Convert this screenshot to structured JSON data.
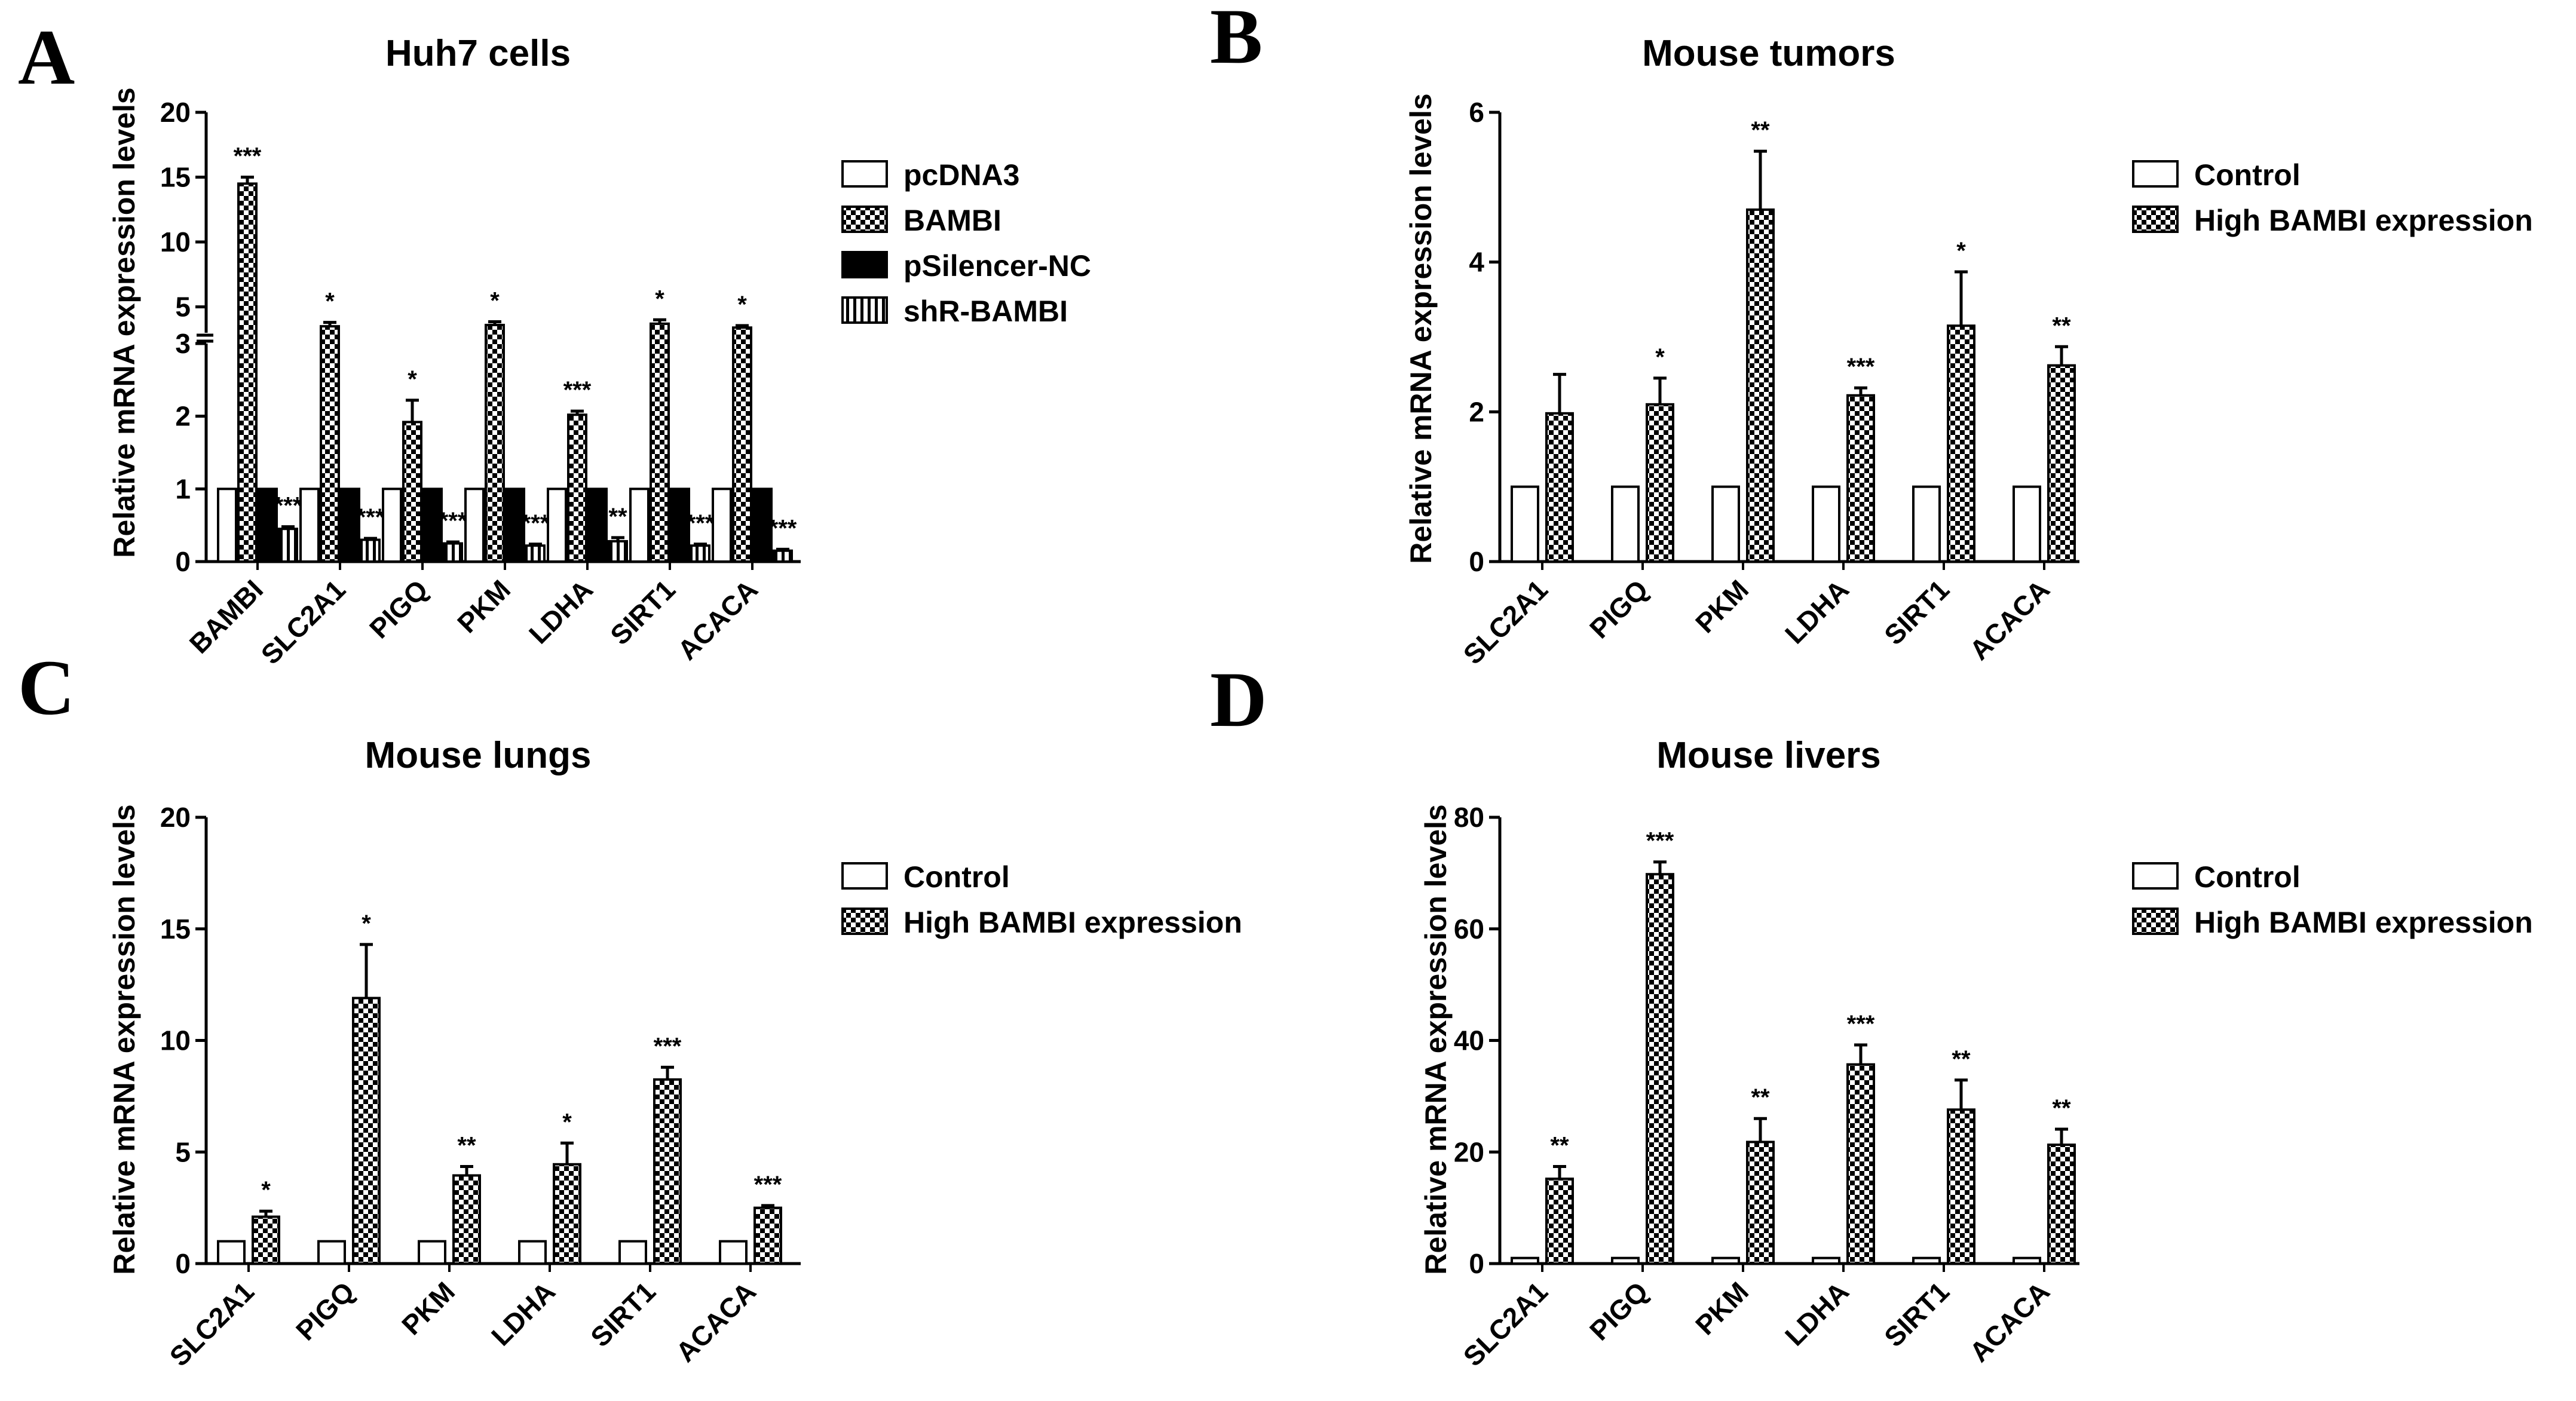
{
  "chart_data": [
    {
      "panel": "A",
      "type": "bar",
      "title": "Huh7 cells",
      "ylabel": "Relative mRNA expression levels",
      "xlabel": "",
      "broken_axis": true,
      "ylim_lower": [
        0,
        3
      ],
      "ylim_upper": [
        3,
        20
      ],
      "yticks_lower": [
        "0",
        "1",
        "2",
        "3"
      ],
      "yticks_upper": [
        "5",
        "10",
        "15",
        "20"
      ],
      "categories": [
        "BAMBI",
        "SLC2A1",
        "PIGQ",
        "PKM",
        "LDHA",
        "SIRT1",
        "ACACA"
      ],
      "series": [
        {
          "name": "pcDNA3",
          "pattern": "open",
          "values": [
            1,
            1,
            1,
            1,
            1,
            1,
            1
          ],
          "errors": [
            0,
            0,
            0,
            0,
            0,
            0,
            0
          ],
          "sig": [
            "",
            "",
            "",
            "",
            "",
            "",
            ""
          ]
        },
        {
          "name": "BAMBI",
          "pattern": "checker",
          "values": [
            14.5,
            3.5,
            1.92,
            3.6,
            2.02,
            3.7,
            3.4
          ],
          "errors": [
            0.5,
            0.3,
            0.3,
            0.25,
            0.05,
            0.3,
            0.15
          ],
          "sig": [
            "***",
            "*",
            "*",
            "*",
            "***",
            "*",
            "*"
          ]
        },
        {
          "name": "pSilencer-NC",
          "pattern": "solid",
          "values": [
            1,
            1,
            1,
            1,
            1,
            1,
            1
          ],
          "errors": [
            0,
            0,
            0,
            0,
            0,
            0,
            0
          ],
          "sig": [
            "",
            "",
            "",
            "",
            "",
            "",
            ""
          ]
        },
        {
          "name": "shR-BAMBI",
          "pattern": "vstripe",
          "values": [
            0.45,
            0.3,
            0.25,
            0.22,
            0.28,
            0.22,
            0.15
          ],
          "errors": [
            0.03,
            0.02,
            0.02,
            0.02,
            0.05,
            0.02,
            0.02
          ],
          "sig": [
            "***",
            "***",
            "***",
            "***",
            "**",
            "***",
            "***"
          ]
        }
      ]
    },
    {
      "panel": "B",
      "type": "bar",
      "title": "Mouse tumors",
      "ylabel": "Relative mRNA expression levels",
      "xlabel": "",
      "ylim": [
        0,
        6
      ],
      "yticks": [
        "0",
        "2",
        "4",
        "6"
      ],
      "categories": [
        "SLC2A1",
        "PIGQ",
        "PKM",
        "LDHA",
        "SIRT1",
        "ACACA"
      ],
      "series": [
        {
          "name": "Control",
          "pattern": "open",
          "values": [
            1,
            1,
            1,
            1,
            1,
            1
          ],
          "errors": [
            0,
            0,
            0,
            0,
            0,
            0
          ],
          "sig": [
            "",
            "",
            "",
            "",
            "",
            ""
          ]
        },
        {
          "name": "High BAMBI expression",
          "pattern": "checker",
          "values": [
            1.98,
            2.1,
            4.7,
            2.22,
            3.15,
            2.62
          ],
          "errors": [
            0.52,
            0.35,
            0.78,
            0.1,
            0.72,
            0.25
          ],
          "sig": [
            "",
            "*",
            "**",
            "***",
            "*",
            "**"
          ]
        }
      ]
    },
    {
      "panel": "C",
      "type": "bar",
      "title": "Mouse lungs",
      "ylabel": "Relative mRNA expression levels",
      "xlabel": "",
      "ylim": [
        0,
        20
      ],
      "yticks": [
        "0",
        "5",
        "10",
        "15",
        "20"
      ],
      "categories": [
        "SLC2A1",
        "PIGQ",
        "PKM",
        "LDHA",
        "SIRT1",
        "ACACA"
      ],
      "series": [
        {
          "name": "Control",
          "pattern": "open",
          "values": [
            1,
            1,
            1,
            1,
            1,
            1
          ],
          "errors": [
            0,
            0,
            0,
            0,
            0,
            0
          ],
          "sig": [
            "",
            "",
            "",
            "",
            "",
            ""
          ]
        },
        {
          "name": "High BAMBI expression",
          "pattern": "checker",
          "values": [
            2.1,
            11.9,
            3.95,
            4.45,
            8.25,
            2.5
          ],
          "errors": [
            0.25,
            2.4,
            0.4,
            0.95,
            0.55,
            0.1
          ],
          "sig": [
            "*",
            "*",
            "**",
            "*",
            "***",
            "***"
          ]
        }
      ]
    },
    {
      "panel": "D",
      "type": "bar",
      "title": "Mouse livers",
      "ylabel": "Relative mRNA expression levels",
      "xlabel": "",
      "ylim": [
        0,
        80
      ],
      "yticks": [
        "0",
        "20",
        "40",
        "60",
        "80"
      ],
      "categories": [
        "SLC2A1",
        "PIGQ",
        "PKM",
        "LDHA",
        "SIRT1",
        "ACACA"
      ],
      "series": [
        {
          "name": "Control",
          "pattern": "open",
          "values": [
            1,
            1,
            1,
            1,
            1,
            1
          ],
          "errors": [
            0,
            0,
            0,
            0,
            0,
            0
          ],
          "sig": [
            "",
            "",
            "",
            "",
            "",
            ""
          ]
        },
        {
          "name": "High BAMBI expression",
          "pattern": "checker",
          "values": [
            15.2,
            69.8,
            21.8,
            35.7,
            27.6,
            21.3
          ],
          "errors": [
            2.2,
            2.2,
            4.2,
            3.5,
            5.3,
            2.8
          ],
          "sig": [
            "**",
            "***",
            "**",
            "***",
            "**",
            "**"
          ]
        }
      ]
    }
  ],
  "colors": {
    "ink": "#000000",
    "paper": "#ffffff"
  }
}
